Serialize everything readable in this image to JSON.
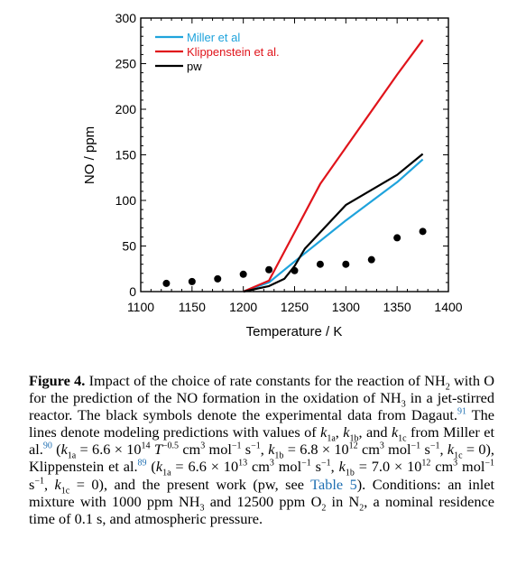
{
  "chart_data": {
    "type": "line",
    "xlabel": "Temperature / K",
    "ylabel": "NO / ppm",
    "xlim": [
      1100,
      1400
    ],
    "ylim": [
      0,
      300
    ],
    "xticks": [
      "1100",
      "1150",
      "1200",
      "1250",
      "1300",
      "1350",
      "1400"
    ],
    "yticks": [
      "0",
      "50",
      "100",
      "150",
      "200",
      "250",
      "300"
    ],
    "legend_position": "top-left",
    "series": [
      {
        "name": "Miller et al",
        "color": "#1fa3dc",
        "x": [
          1200,
          1225,
          1250,
          1300,
          1350,
          1375
        ],
        "y": [
          0,
          10,
          33,
          78,
          120,
          145
        ]
      },
      {
        "name": "Klippenstein et al.",
        "color": "#e0141b",
        "x": [
          1200,
          1225,
          1250,
          1275,
          1300,
          1350,
          1375
        ],
        "y": [
          0,
          12,
          65,
          118,
          158,
          238,
          276
        ]
      },
      {
        "name": "pw",
        "color": "#000000",
        "x": [
          1200,
          1225,
          1240,
          1250,
          1260,
          1300,
          1350,
          1375
        ],
        "y": [
          0,
          6,
          14,
          28,
          47,
          95,
          128,
          151
        ]
      }
    ],
    "experimental": {
      "color": "#000000",
      "x": [
        1125,
        1150,
        1175,
        1200,
        1225,
        1250,
        1275,
        1300,
        1325,
        1350,
        1375
      ],
      "y": [
        9,
        11,
        14,
        19,
        24,
        23,
        30,
        30,
        35,
        59,
        66
      ]
    }
  },
  "caption": {
    "label": "Figure 4.",
    "t1": " Impact of the choice of rate constants for the reaction of NH",
    "t2": " with O for the prediction of the NO formation in the oxidation of NH",
    "t3": " in a jet-stirred reactor. The black symbols denote the experimental data from Dagaut.",
    "ref91": "91",
    "t4": " The lines denote modeling predictions with values of ",
    "t5": ", and ",
    "t6": " from Miller et al.",
    "ref90": "90",
    "t7": " (",
    "k1a_miller": " = 6.6 × 10",
    "exp14": "14",
    "Tpow": "−0.5",
    "units1": " cm",
    "t8": " mol",
    "t9": " s",
    "k1b_miller": " = 6.8 × 10",
    "exp12": "12",
    "k1c_zero": " = 0), Klippenstein et al.",
    "ref89": "89",
    "k1a_klip": " = 6.6 × 10",
    "exp13": "13",
    "k1b_klip": " = 7.0 × 10",
    "k1c_zero2": " = 0), and the present work (pw, see ",
    "table_ref": "Table 5",
    "t10": "). Conditions: an inlet mixture with 1000 ppm NH",
    "t11": " and 12500 ppm O",
    "t12": " in N",
    "t13": ", a nominal residence time of 0.1 s, and atmospheric pressure."
  }
}
